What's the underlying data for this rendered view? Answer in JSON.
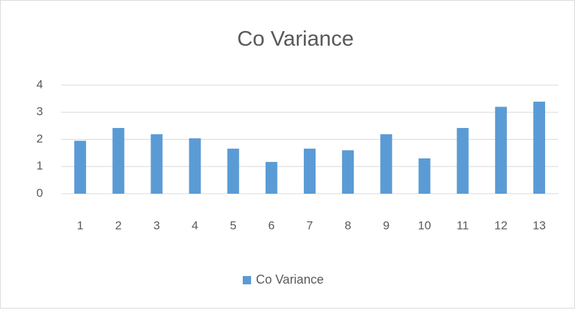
{
  "chart_data": {
    "type": "bar",
    "title": "Co Variance",
    "categories": [
      "1",
      "2",
      "3",
      "4",
      "5",
      "6",
      "7",
      "8",
      "9",
      "10",
      "11",
      "12",
      "13"
    ],
    "series": [
      {
        "name": "Co Variance",
        "color": "#5b9bd5",
        "values": [
          1.95,
          2.42,
          2.19,
          2.04,
          1.66,
          1.17,
          1.66,
          1.6,
          2.19,
          1.3,
          2.42,
          3.2,
          3.39
        ]
      }
    ],
    "ylim": [
      0,
      4
    ],
    "yticks": [
      0,
      1,
      2,
      3,
      4
    ],
    "grid": true,
    "legend": "bottom"
  }
}
